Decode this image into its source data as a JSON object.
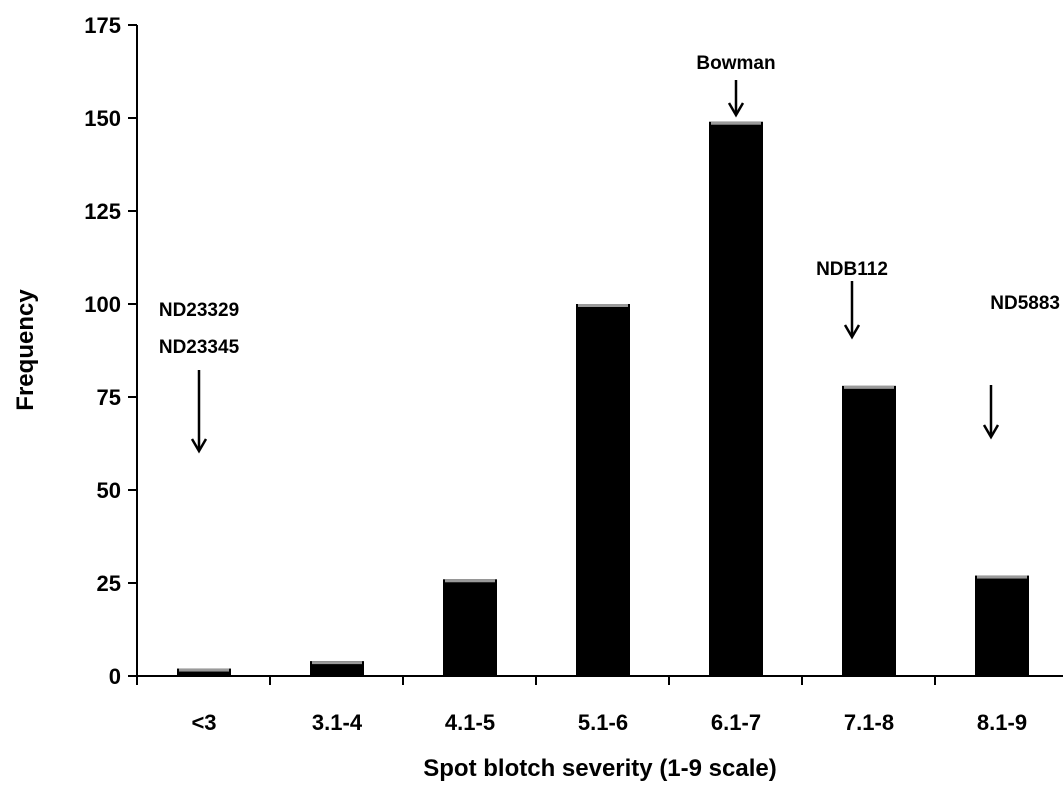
{
  "chart_data": {
    "type": "bar",
    "title": "",
    "xlabel": "Spot blotch severity (1-9 scale)",
    "ylabel": "Frequency",
    "ylim": [
      0,
      175
    ],
    "yticks": [
      "0",
      "25",
      "50",
      "75",
      "100",
      "125",
      "150",
      "175"
    ],
    "categories": [
      "<3",
      "3.1-4",
      "4.1-5",
      "5.1-6",
      "6.1-7",
      "7.1-8",
      "8.1-9"
    ],
    "values": [
      2,
      4,
      26,
      100,
      149,
      78,
      27
    ],
    "grid": false,
    "legend": "none",
    "bar_color": "#000000",
    "annotations": [
      {
        "category": "<3",
        "lines": [
          "ND23329",
          "ND23345"
        ]
      },
      {
        "category": "6.1-7",
        "lines": [
          "Bowman"
        ]
      },
      {
        "category": "7.1-8",
        "lines": [
          "NDB112"
        ]
      },
      {
        "category": "8.1-9",
        "lines": [
          "ND5883"
        ]
      }
    ]
  }
}
